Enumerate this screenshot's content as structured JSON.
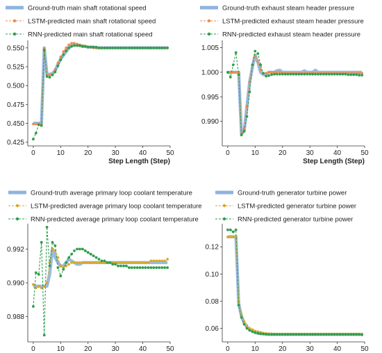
{
  "chart_data": [
    {
      "type": "line",
      "xlabel": "Step Length (Step)",
      "xlim": [
        -2,
        50
      ],
      "ylim": [
        0.42,
        0.56
      ],
      "xticks": [
        "0",
        "10",
        "20",
        "30",
        "40",
        "50"
      ],
      "yticks": [
        "0.425",
        "0.450",
        "0.475",
        "0.500",
        "0.525",
        "0.550"
      ],
      "legend_position": "top",
      "x": [
        0,
        1,
        2,
        3,
        4,
        5,
        6,
        7,
        8,
        9,
        10,
        11,
        12,
        13,
        14,
        15,
        16,
        17,
        18,
        19,
        20,
        21,
        22,
        23,
        24,
        25,
        26,
        27,
        28,
        29,
        30,
        31,
        32,
        33,
        34,
        35,
        36,
        37,
        38,
        39,
        40,
        41,
        42,
        43,
        44,
        45,
        46,
        47,
        48,
        49
      ],
      "series": [
        {
          "name": "Ground-truth main shaft rotational speed",
          "color": "#8fb3de",
          "values": [
            0.45,
            0.45,
            0.45,
            0.45,
            0.55,
            0.515,
            0.515,
            0.516,
            0.52,
            0.528,
            0.535,
            0.54,
            0.545,
            0.55,
            0.553,
            0.554,
            0.554,
            0.553,
            0.552,
            0.552,
            0.551,
            0.551,
            0.551,
            0.55,
            0.55,
            0.55,
            0.55,
            0.55,
            0.55,
            0.55,
            0.55,
            0.55,
            0.55,
            0.55,
            0.55,
            0.55,
            0.55,
            0.55,
            0.55,
            0.55,
            0.55,
            0.55,
            0.55,
            0.55,
            0.55,
            0.55,
            0.55,
            0.55,
            0.55,
            0.55
          ]
        },
        {
          "name": "LSTM-predicted main shaft rotational speed",
          "color": "#f08a4b",
          "values": [
            0.449,
            0.449,
            0.449,
            0.449,
            0.549,
            0.514,
            0.514,
            0.515,
            0.521,
            0.53,
            0.538,
            0.545,
            0.55,
            0.554,
            0.556,
            0.556,
            0.555,
            0.554,
            0.553,
            0.552,
            0.551,
            0.551,
            0.55,
            0.55,
            0.55,
            0.55,
            0.55,
            0.55,
            0.55,
            0.55,
            0.55,
            0.55,
            0.55,
            0.55,
            0.55,
            0.55,
            0.55,
            0.55,
            0.55,
            0.55,
            0.55,
            0.55,
            0.55,
            0.55,
            0.55,
            0.55,
            0.55,
            0.55,
            0.55,
            0.55
          ]
        },
        {
          "name": "RNN-predicted main shaft rotational speed",
          "color": "#2e9e4a",
          "values": [
            0.429,
            0.437,
            0.448,
            0.447,
            0.547,
            0.512,
            0.511,
            0.514,
            0.518,
            0.526,
            0.534,
            0.541,
            0.546,
            0.55,
            0.552,
            0.553,
            0.553,
            0.553,
            0.552,
            0.552,
            0.551,
            0.551,
            0.551,
            0.551,
            0.55,
            0.55,
            0.55,
            0.55,
            0.55,
            0.55,
            0.55,
            0.55,
            0.55,
            0.55,
            0.55,
            0.55,
            0.55,
            0.55,
            0.55,
            0.55,
            0.55,
            0.55,
            0.55,
            0.55,
            0.55,
            0.55,
            0.55,
            0.55,
            0.55,
            0.55
          ]
        }
      ]
    },
    {
      "type": "line",
      "xlabel": "Step Length (Step)",
      "xlim": [
        -2,
        50
      ],
      "ylim": [
        0.985,
        1.0065
      ],
      "xticks": [
        "0",
        "10",
        "20",
        "30",
        "40",
        "50"
      ],
      "yticks": [
        "0.990",
        "0.995",
        "1.000",
        "1.005"
      ],
      "legend_position": "top",
      "x": [
        0,
        1,
        2,
        3,
        4,
        5,
        6,
        7,
        8,
        9,
        10,
        11,
        12,
        13,
        14,
        15,
        16,
        17,
        18,
        19,
        20,
        21,
        22,
        23,
        24,
        25,
        26,
        27,
        28,
        29,
        30,
        31,
        32,
        33,
        34,
        35,
        36,
        37,
        38,
        39,
        40,
        41,
        42,
        43,
        44,
        45,
        46,
        47,
        48,
        49
      ],
      "series": [
        {
          "name": "Ground-truth exhaust steam header pressure",
          "color": "#8fb3de",
          "values": [
            1.0,
            1.0,
            1.0,
            1.0,
            1.0,
            0.9875,
            0.988,
            0.993,
            0.998,
            1.001,
            1.0035,
            1.002,
            1.0,
            0.9995,
            0.9995,
            1.0,
            1.0,
            1.0,
            1.0003,
            1.0004,
            1.0,
            1.0,
            1.0,
            1.0,
            1.0,
            1.0,
            1.0,
            1.0,
            1.0003,
            1.0,
            1.0,
            1.0,
            1.0004,
            1.0,
            1.0,
            1.0,
            1.0,
            1.0,
            1.0,
            1.0,
            1.0,
            1.0,
            1.0,
            1.0,
            1.0,
            1.0,
            1.0,
            1.0,
            1.0,
            1.0
          ]
        },
        {
          "name": "LSTM-predicted exhaust steam header pressure",
          "color": "#f08a4b",
          "values": [
            1.0,
            1.0,
            1.0,
            1.0,
            1.0,
            0.9875,
            0.9885,
            0.993,
            0.998,
            1.0015,
            1.0033,
            1.0022,
            1.0005,
            0.9998,
            0.9998,
            1.0,
            1.0,
            1.0,
            1.0,
            1.0,
            0.9998,
            0.9998,
            0.9998,
            0.9998,
            0.9998,
            0.9998,
            0.9998,
            0.9998,
            0.9998,
            0.9998,
            0.9998,
            0.9998,
            0.9998,
            0.9998,
            0.9998,
            0.9998,
            0.9998,
            0.9998,
            0.9998,
            0.9998,
            0.9998,
            0.9998,
            0.9998,
            0.9998,
            0.9998,
            0.9998,
            0.9998,
            0.9998,
            0.9998,
            0.9998
          ]
        },
        {
          "name": "RNN-predicted exhaust steam header pressure",
          "color": "#2e9e4a",
          "values": [
            1.0,
            0.999,
            1.0015,
            1.004,
            0.9995,
            0.9872,
            0.988,
            0.991,
            0.996,
            1.0015,
            1.0043,
            1.0038,
            1.0015,
            0.9998,
            0.9992,
            0.9993,
            0.9995,
            0.9996,
            0.9996,
            0.9996,
            0.9996,
            0.9996,
            0.9996,
            0.9996,
            0.9996,
            0.9996,
            0.9996,
            0.9996,
            0.9996,
            0.9996,
            0.9996,
            0.9996,
            0.9996,
            0.9996,
            0.9996,
            0.9996,
            0.9996,
            0.9996,
            0.9996,
            0.9996,
            0.9996,
            0.9996,
            0.9996,
            0.9996,
            0.9995,
            0.9995,
            0.9995,
            0.9995,
            0.9994,
            0.9994
          ]
        }
      ]
    },
    {
      "type": "line",
      "xlabel": "Step Length (Step)",
      "xlim": [
        -2,
        50
      ],
      "ylim": [
        0.9865,
        0.9935
      ],
      "xticks": [
        "0",
        "10",
        "20",
        "30",
        "40",
        "50"
      ],
      "yticks": [
        "0.988",
        "0.990",
        "0.992"
      ],
      "legend_position": "top",
      "x": [
        0,
        1,
        2,
        3,
        4,
        5,
        6,
        7,
        8,
        9,
        10,
        11,
        12,
        13,
        14,
        15,
        16,
        17,
        18,
        19,
        20,
        21,
        22,
        23,
        24,
        25,
        26,
        27,
        28,
        29,
        30,
        31,
        32,
        33,
        34,
        35,
        36,
        37,
        38,
        39,
        40,
        41,
        42,
        43,
        44,
        45,
        46,
        47,
        48,
        49
      ],
      "series": [
        {
          "name": "Ground-truth average primary loop coolant temperature",
          "color": "#8fb3de",
          "values": [
            0.9898,
            0.9898,
            0.9898,
            0.9898,
            0.9898,
            0.9898,
            0.9905,
            0.992,
            0.9915,
            0.9912,
            0.991,
            0.991,
            0.9912,
            0.9914,
            0.9913,
            0.9912,
            0.9911,
            0.9911,
            0.9912,
            0.9912,
            0.9912,
            0.9912,
            0.9912,
            0.9912,
            0.9912,
            0.9912,
            0.9912,
            0.9912,
            0.9912,
            0.9912,
            0.9912,
            0.9912,
            0.9912,
            0.9912,
            0.9912,
            0.9912,
            0.9912,
            0.9912,
            0.9912,
            0.9912,
            0.9912,
            0.9912,
            0.9912,
            0.9912,
            0.9912,
            0.9912,
            0.9912,
            0.9912,
            0.9912,
            0.9912
          ]
        },
        {
          "name": "LSTM-predicted average primary loop coolant temperature",
          "color": "#d9a72b",
          "values": [
            0.9899,
            0.9897,
            0.9898,
            0.9897,
            0.9898,
            0.99,
            0.9912,
            0.992,
            0.9919,
            0.9915,
            0.991,
            0.9909,
            0.991,
            0.9911,
            0.9912,
            0.9912,
            0.9912,
            0.9912,
            0.9912,
            0.9912,
            0.9912,
            0.9912,
            0.9912,
            0.9912,
            0.9912,
            0.9912,
            0.9912,
            0.9912,
            0.9912,
            0.9912,
            0.9912,
            0.9912,
            0.9912,
            0.9912,
            0.9912,
            0.9912,
            0.9912,
            0.9912,
            0.9912,
            0.9912,
            0.9912,
            0.9912,
            0.9912,
            0.9913,
            0.9913,
            0.9913,
            0.9913,
            0.9913,
            0.9913,
            0.9914
          ]
        },
        {
          "name": "RNN-predicted average primary loop coolant temperature",
          "color": "#2e9e4a",
          "values": [
            0.9886,
            0.9906,
            0.9905,
            0.9924,
            0.9869,
            0.9933,
            0.991,
            0.9924,
            0.9922,
            0.9909,
            0.9904,
            0.9908,
            0.9912,
            0.9915,
            0.9917,
            0.9919,
            0.992,
            0.992,
            0.992,
            0.9919,
            0.9918,
            0.9917,
            0.9916,
            0.9915,
            0.9914,
            0.9913,
            0.9913,
            0.9912,
            0.9912,
            0.9911,
            0.9911,
            0.991,
            0.991,
            0.991,
            0.991,
            0.9909,
            0.9909,
            0.9909,
            0.9909,
            0.9909,
            0.9909,
            0.9909,
            0.9909,
            0.9909,
            0.9909,
            0.9909,
            0.9909,
            0.9909,
            0.9909,
            0.9909
          ]
        }
      ]
    },
    {
      "type": "line",
      "xlabel": "Step Length (Step)",
      "xlim": [
        -2,
        50
      ],
      "ylim": [
        0.05,
        0.137
      ],
      "xticks": [
        "0",
        "10",
        "20",
        "30",
        "40",
        "50"
      ],
      "yticks": [
        "0.06",
        "0.08",
        "0.10",
        "0.12"
      ],
      "legend_position": "top",
      "x": [
        0,
        1,
        2,
        3,
        4,
        5,
        6,
        7,
        8,
        9,
        10,
        11,
        12,
        13,
        14,
        15,
        16,
        17,
        18,
        19,
        20,
        21,
        22,
        23,
        24,
        25,
        26,
        27,
        28,
        29,
        30,
        31,
        32,
        33,
        34,
        35,
        36,
        37,
        38,
        39,
        40,
        41,
        42,
        43,
        44,
        45,
        46,
        47,
        48,
        49
      ],
      "series": [
        {
          "name": "Ground-truth generator turbine power",
          "color": "#8fb3de",
          "values": [
            0.1275,
            0.1275,
            0.1275,
            0.1275,
            0.078,
            0.069,
            0.064,
            0.061,
            0.059,
            0.058,
            0.057,
            0.0565,
            0.056,
            0.056,
            0.0558,
            0.0556,
            0.0555,
            0.0555,
            0.0555,
            0.0555,
            0.0555,
            0.0555,
            0.0555,
            0.0555,
            0.0555,
            0.0555,
            0.0555,
            0.0555,
            0.0555,
            0.0555,
            0.0555,
            0.0555,
            0.0555,
            0.0555,
            0.0555,
            0.0555,
            0.0555,
            0.0555,
            0.0555,
            0.0555,
            0.0555,
            0.0555,
            0.0555,
            0.0555,
            0.0555,
            0.0555,
            0.0555,
            0.0555,
            0.0555,
            0.0555
          ]
        },
        {
          "name": "LSTM-predicted generator turbine power",
          "color": "#d9a72b",
          "values": [
            0.1272,
            0.1272,
            0.1272,
            0.1272,
            0.079,
            0.07,
            0.065,
            0.062,
            0.06,
            0.059,
            0.058,
            0.0575,
            0.057,
            0.0565,
            0.0562,
            0.056,
            0.056,
            0.0558,
            0.0558,
            0.0558,
            0.0558,
            0.0558,
            0.0558,
            0.0558,
            0.0558,
            0.0558,
            0.0558,
            0.0558,
            0.0558,
            0.0558,
            0.0558,
            0.0558,
            0.0558,
            0.0558,
            0.0558,
            0.0558,
            0.0558,
            0.0558,
            0.0558,
            0.0558,
            0.0558,
            0.0558,
            0.0558,
            0.0558,
            0.0558,
            0.0558,
            0.0558,
            0.0558,
            0.0558,
            0.0558
          ]
        },
        {
          "name": "RNN-predicted generator turbine power",
          "color": "#2e9e4a",
          "values": [
            0.1325,
            0.1325,
            0.131,
            0.1325,
            0.077,
            0.068,
            0.063,
            0.06,
            0.0585,
            0.0575,
            0.0568,
            0.0563,
            0.056,
            0.0558,
            0.0556,
            0.0555,
            0.0555,
            0.0555,
            0.0555,
            0.0555,
            0.0555,
            0.0555,
            0.0555,
            0.0555,
            0.0555,
            0.0555,
            0.0555,
            0.0555,
            0.0555,
            0.0555,
            0.0555,
            0.0555,
            0.0555,
            0.0555,
            0.0555,
            0.0555,
            0.0555,
            0.0555,
            0.0555,
            0.0555,
            0.0555,
            0.0555,
            0.0555,
            0.0555,
            0.0555,
            0.0555,
            0.0555,
            0.0555,
            0.0555,
            0.0552
          ]
        }
      ]
    }
  ]
}
